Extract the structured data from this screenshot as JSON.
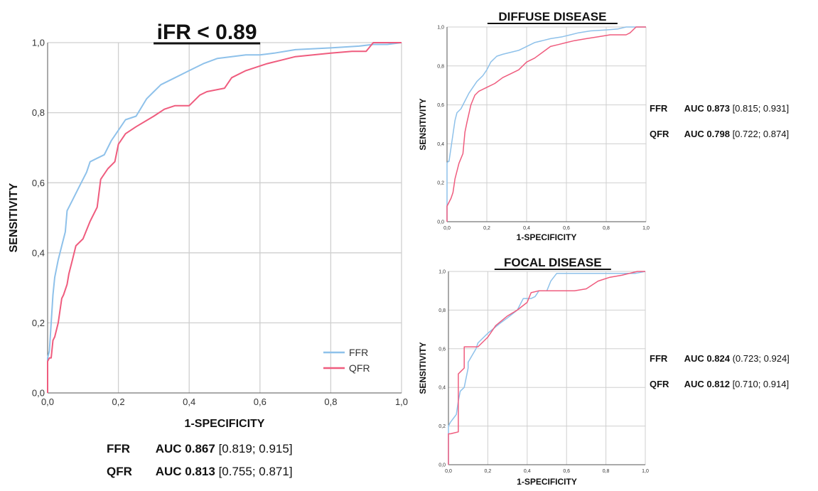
{
  "chart_data": [
    {
      "type": "line",
      "title": "iFR < 0.89",
      "xlabel": "1-SPECIFICITY",
      "ylabel": "SENSITIVITY",
      "xlim": [
        0,
        1
      ],
      "ylim": [
        0,
        1
      ],
      "x_ticks": [
        "0,0",
        "0,2",
        "0,4",
        "0,6",
        "0,8",
        "1,0"
      ],
      "y_ticks": [
        "0,0",
        "0,2",
        "0,4",
        "0,6",
        "0,8",
        "1,0"
      ],
      "grid": true,
      "legend": "bottom-right",
      "series": [
        {
          "name": "FFR",
          "color": "#8ec1ea",
          "x": [
            0,
            0,
            0.005,
            0.01,
            0.015,
            0.02,
            0.03,
            0.04,
            0.05,
            0.055,
            0.07,
            0.09,
            0.11,
            0.12,
            0.14,
            0.16,
            0.18,
            0.2,
            0.22,
            0.25,
            0.28,
            0.3,
            0.32,
            0.36,
            0.4,
            0.44,
            0.48,
            0.52,
            0.56,
            0.6,
            0.64,
            0.7,
            0.8,
            0.88,
            0.92,
            0.96,
            1.0
          ],
          "y": [
            0,
            0.1,
            0.12,
            0.2,
            0.28,
            0.33,
            0.38,
            0.42,
            0.46,
            0.52,
            0.55,
            0.59,
            0.63,
            0.66,
            0.67,
            0.68,
            0.72,
            0.75,
            0.78,
            0.79,
            0.84,
            0.86,
            0.88,
            0.9,
            0.92,
            0.94,
            0.955,
            0.96,
            0.965,
            0.965,
            0.97,
            0.98,
            0.985,
            0.99,
            0.995,
            0.995,
            1.0
          ]
        },
        {
          "name": "QFR",
          "color": "#ef5c7e",
          "x": [
            0,
            0,
            0.005,
            0.01,
            0.015,
            0.02,
            0.03,
            0.04,
            0.045,
            0.055,
            0.06,
            0.07,
            0.08,
            0.1,
            0.12,
            0.14,
            0.15,
            0.17,
            0.19,
            0.2,
            0.22,
            0.25,
            0.3,
            0.33,
            0.36,
            0.4,
            0.43,
            0.45,
            0.5,
            0.52,
            0.56,
            0.62,
            0.66,
            0.7,
            0.75,
            0.8,
            0.86,
            0.9,
            0.92,
            0.94,
            1.0
          ],
          "y": [
            0,
            0.09,
            0.1,
            0.1,
            0.15,
            0.16,
            0.2,
            0.27,
            0.28,
            0.31,
            0.34,
            0.38,
            0.42,
            0.44,
            0.49,
            0.53,
            0.61,
            0.64,
            0.66,
            0.71,
            0.74,
            0.76,
            0.79,
            0.81,
            0.82,
            0.82,
            0.85,
            0.86,
            0.87,
            0.9,
            0.92,
            0.94,
            0.95,
            0.96,
            0.965,
            0.97,
            0.975,
            0.975,
            1.0,
            1.0,
            1.0
          ]
        }
      ]
    },
    {
      "type": "line",
      "title": "DIFFUSE DISEASE",
      "xlabel": "1-SPECIFICITY",
      "ylabel": "SENSITIVITY",
      "xlim": [
        0,
        1
      ],
      "ylim": [
        0,
        1
      ],
      "x_ticks": [
        "0,0",
        "0,2",
        "0,4",
        "0,6",
        "0,8",
        "1,0"
      ],
      "y_ticks": [
        "0,0",
        "0,2",
        "0,4",
        "0,6",
        "0,8",
        "1,0"
      ],
      "grid": true,
      "series": [
        {
          "color": "#8ec1ea",
          "x": [
            0,
            0,
            0.005,
            0.01,
            0.02,
            0.03,
            0.04,
            0.05,
            0.07,
            0.09,
            0.11,
            0.13,
            0.15,
            0.18,
            0.2,
            0.22,
            0.25,
            0.28,
            0.32,
            0.36,
            0.4,
            0.44,
            0.48,
            0.52,
            0.58,
            0.62,
            0.66,
            0.72,
            0.8,
            0.86,
            0.9,
            1.0
          ],
          "y": [
            0,
            0.3,
            0.31,
            0.31,
            0.38,
            0.45,
            0.52,
            0.56,
            0.58,
            0.62,
            0.66,
            0.69,
            0.72,
            0.75,
            0.78,
            0.82,
            0.85,
            0.86,
            0.87,
            0.88,
            0.9,
            0.92,
            0.93,
            0.94,
            0.95,
            0.96,
            0.97,
            0.98,
            0.985,
            0.99,
            1.0,
            1.0
          ]
        },
        {
          "color": "#ef5c7e",
          "x": [
            0,
            0,
            0.01,
            0.02,
            0.03,
            0.04,
            0.05,
            0.06,
            0.08,
            0.09,
            0.1,
            0.12,
            0.14,
            0.16,
            0.2,
            0.24,
            0.28,
            0.32,
            0.36,
            0.4,
            0.44,
            0.48,
            0.52,
            0.56,
            0.6,
            0.64,
            0.7,
            0.76,
            0.82,
            0.9,
            0.92,
            0.95,
            1.0
          ],
          "y": [
            0,
            0.08,
            0.1,
            0.12,
            0.15,
            0.22,
            0.26,
            0.3,
            0.35,
            0.46,
            0.51,
            0.6,
            0.65,
            0.67,
            0.69,
            0.71,
            0.74,
            0.76,
            0.78,
            0.82,
            0.84,
            0.87,
            0.9,
            0.91,
            0.92,
            0.93,
            0.94,
            0.95,
            0.96,
            0.96,
            0.97,
            1.0,
            1.0
          ]
        }
      ],
      "annotations": [
        {
          "metric": "FFR",
          "auc_label": "AUC 0.873",
          "ci": "[0.815; 0.931]"
        },
        {
          "metric": "QFR",
          "auc_label": "AUC 0.798",
          "ci": "[0.722; 0.874]"
        }
      ]
    },
    {
      "type": "line",
      "title": "FOCAL DISEASE",
      "xlabel": "1-SPECIFICITY",
      "ylabel": "SENSITIVITY",
      "xlim": [
        0,
        1
      ],
      "ylim": [
        0,
        1
      ],
      "x_ticks": [
        "0,0",
        "0,2",
        "0,4",
        "0,6",
        "0,8",
        "1,0"
      ],
      "y_ticks": [
        "0,0",
        "0,2",
        "0,4",
        "0,6",
        "0,8",
        "1,0"
      ],
      "grid": true,
      "series": [
        {
          "color": "#8ec1ea",
          "x": [
            0,
            0,
            0.01,
            0.04,
            0.05,
            0.06,
            0.08,
            0.1,
            0.1,
            0.14,
            0.15,
            0.2,
            0.26,
            0.3,
            0.35,
            0.37,
            0.38,
            0.4,
            0.42,
            0.44,
            0.46,
            0.5,
            0.52,
            0.55,
            0.6,
            0.7,
            0.8,
            0.9,
            0.95,
            1.0
          ],
          "y": [
            0,
            0.2,
            0.22,
            0.26,
            0.33,
            0.38,
            0.4,
            0.5,
            0.53,
            0.6,
            0.63,
            0.68,
            0.73,
            0.76,
            0.8,
            0.84,
            0.86,
            0.86,
            0.86,
            0.87,
            0.9,
            0.9,
            0.95,
            0.99,
            0.99,
            0.99,
            0.99,
            0.99,
            0.99,
            1.0
          ]
        },
        {
          "color": "#ef5c7e",
          "x": [
            0,
            0,
            0.01,
            0.05,
            0.05,
            0.08,
            0.08,
            0.1,
            0.14,
            0.15,
            0.2,
            0.24,
            0.3,
            0.35,
            0.4,
            0.42,
            0.46,
            0.5,
            0.56,
            0.64,
            0.7,
            0.76,
            0.82,
            0.88,
            0.92,
            0.96,
            1.0
          ],
          "y": [
            0,
            0.16,
            0.16,
            0.17,
            0.47,
            0.5,
            0.61,
            0.61,
            0.61,
            0.61,
            0.66,
            0.72,
            0.77,
            0.8,
            0.84,
            0.89,
            0.9,
            0.9,
            0.9,
            0.9,
            0.91,
            0.95,
            0.97,
            0.98,
            0.99,
            1.0,
            1.0
          ]
        }
      ],
      "annotations": [
        {
          "metric": "FFR",
          "auc_label": "AUC 0.824",
          "ci": "(0.723; 0.924]"
        },
        {
          "metric": "QFR",
          "auc_label": "AUC 0.812",
          "ci": "[0.710; 0.914]"
        }
      ]
    }
  ],
  "main_auc": [
    {
      "metric": "FFR",
      "auc_label": "AUC 0.867",
      "ci": "[0.819; 0.915]"
    },
    {
      "metric": "QFR",
      "auc_label": "AUC 0.813",
      "ci": "[0.755; 0.871]"
    }
  ]
}
